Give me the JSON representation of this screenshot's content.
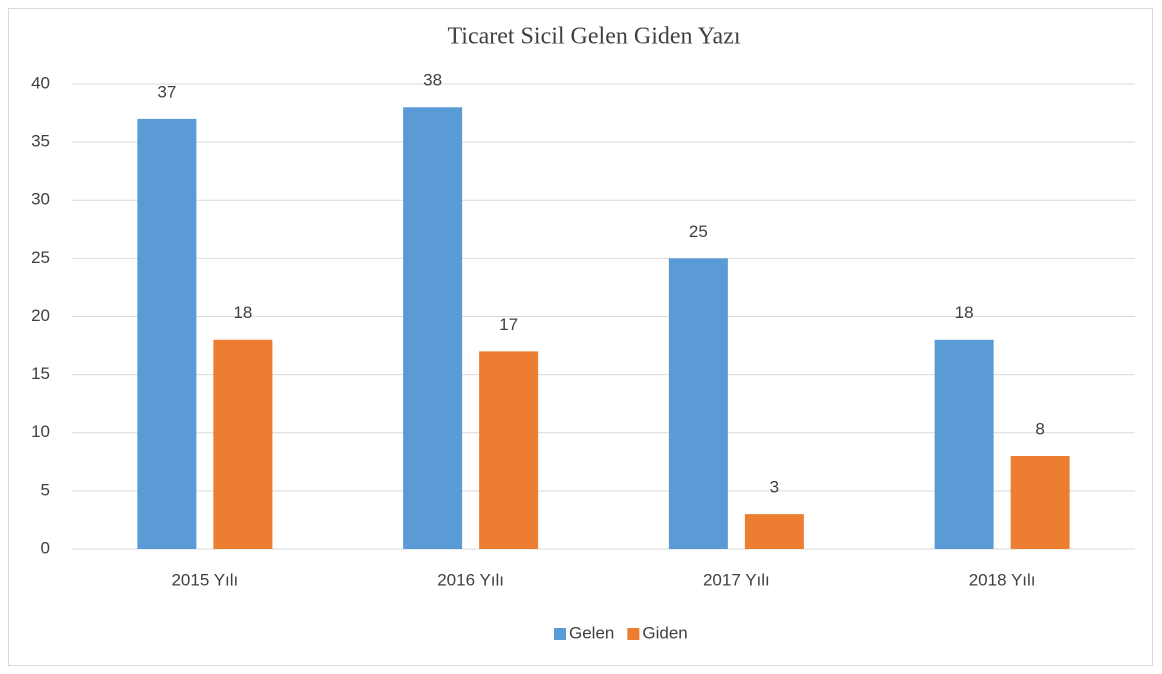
{
  "chart_data": {
    "type": "bar",
    "title": "Ticaret Sicil Gelen Giden Yazı",
    "categories": [
      "2015 Yılı",
      "2016 Yılı",
      "2017 Yılı",
      "2018 Yılı"
    ],
    "series": [
      {
        "name": "Gelen",
        "color": "#5b9bd5",
        "values": [
          37,
          38,
          25,
          18
        ]
      },
      {
        "name": "Giden",
        "color": "#ed7d31",
        "values": [
          18,
          17,
          3,
          8
        ]
      }
    ],
    "ylim": [
      0,
      40
    ],
    "yticks": [
      0,
      5,
      10,
      15,
      20,
      25,
      30,
      35,
      40
    ],
    "grid": true,
    "legend": "bottom"
  }
}
